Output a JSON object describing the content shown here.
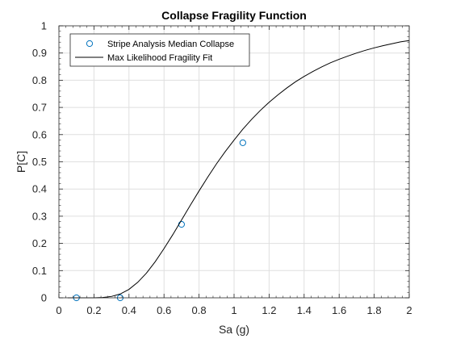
{
  "chart_data": {
    "type": "scatter",
    "title": "Collapse Fragility Function",
    "xlabel": "Sa (g)",
    "ylabel": "P[C]",
    "xlim": [
      0,
      2
    ],
    "ylim": [
      0,
      1
    ],
    "xticks": [
      "0",
      "0.2",
      "0.4",
      "0.6",
      "0.8",
      "1",
      "1.2",
      "1.4",
      "1.6",
      "1.8",
      "2"
    ],
    "yticks": [
      "0",
      "0.1",
      "0.2",
      "0.3",
      "0.4",
      "0.5",
      "0.6",
      "0.7",
      "0.8",
      "0.9",
      "1"
    ],
    "grid": true,
    "minor_ticks": true,
    "legend_position": "top-left",
    "series": [
      {
        "name": "Stripe Analysis Median Collapse",
        "kind": "markers",
        "marker": "circle",
        "color": "#0072bd",
        "x": [
          0.1,
          0.35,
          0.7,
          1.05
        ],
        "y": [
          0.0,
          0.0,
          0.27,
          0.57
        ]
      },
      {
        "name": "Max Likelihood Fragility Fit",
        "kind": "line",
        "color": "#000000",
        "x": [
          0.05,
          0.1,
          0.15,
          0.2,
          0.25,
          0.3,
          0.35,
          0.4,
          0.45,
          0.5,
          0.55,
          0.6,
          0.65,
          0.7,
          0.75,
          0.8,
          0.85,
          0.9,
          0.95,
          1.0,
          1.05,
          1.1,
          1.15,
          1.2,
          1.25,
          1.3,
          1.35,
          1.4,
          1.45,
          1.5,
          1.55,
          1.6,
          1.65,
          1.7,
          1.75,
          1.8,
          1.85,
          1.9,
          1.95,
          2.0
        ],
        "y": [
          0.0,
          0.0,
          0.0,
          0.0,
          0.001,
          0.005,
          0.014,
          0.031,
          0.057,
          0.091,
          0.133,
          0.181,
          0.232,
          0.286,
          0.34,
          0.393,
          0.444,
          0.493,
          0.538,
          0.58,
          0.62,
          0.656,
          0.689,
          0.719,
          0.746,
          0.771,
          0.794,
          0.814,
          0.832,
          0.849,
          0.864,
          0.877,
          0.889,
          0.9,
          0.91,
          0.919,
          0.927,
          0.934,
          0.941,
          0.946
        ]
      }
    ]
  }
}
